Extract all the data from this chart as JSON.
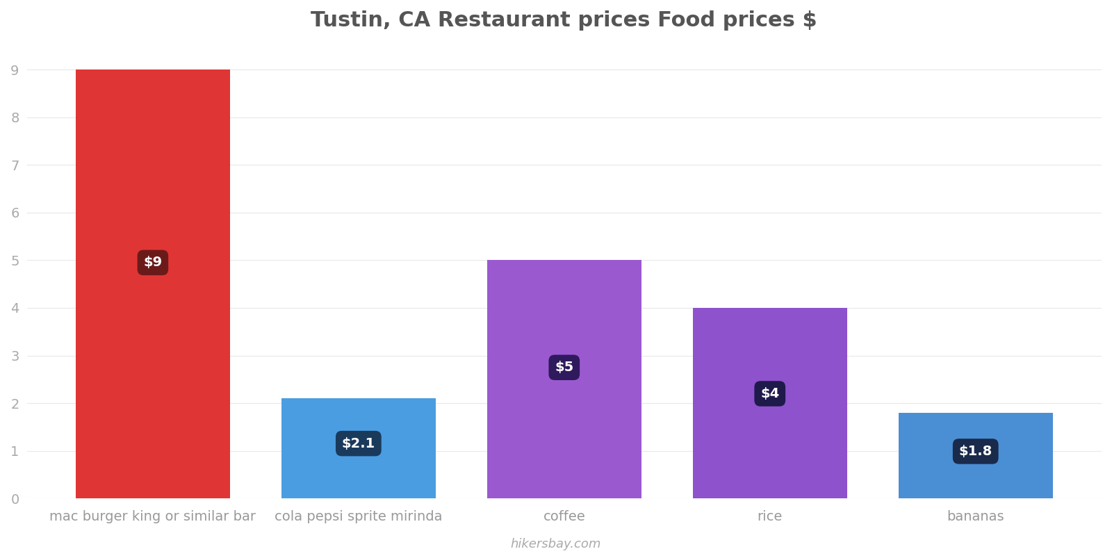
{
  "title": "Tustin, CA Restaurant prices Food prices $",
  "categories": [
    "mac burger king or similar bar",
    "cola pepsi sprite mirinda",
    "coffee",
    "rice",
    "bananas"
  ],
  "values": [
    9,
    2.1,
    5,
    4,
    1.8
  ],
  "bar_colors": [
    "#e03535",
    "#4a9de0",
    "#9b59d0",
    "#8e52cc",
    "#4a8fd4"
  ],
  "label_texts": [
    "$9",
    "$2.1",
    "$5",
    "$4",
    "$1.8"
  ],
  "label_box_colors": [
    "#6b1a1a",
    "#1a3a5c",
    "#2e1a5c",
    "#1e1a4a",
    "#1a2a4a"
  ],
  "ylim": [
    0,
    9.5
  ],
  "yticks": [
    0,
    1,
    2,
    3,
    4,
    5,
    6,
    7,
    8,
    9
  ],
  "title_fontsize": 22,
  "tick_label_fontsize": 14,
  "watermark": "hikersbay.com",
  "background_color": "#ffffff",
  "grid_color": "#e8e8e8"
}
